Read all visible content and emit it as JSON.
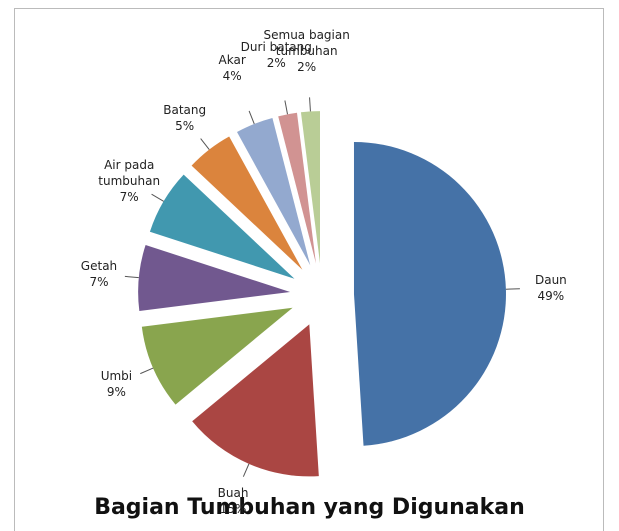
{
  "chart_data": {
    "type": "pie",
    "title": "Bagian Tumbuhan yang Digunakan",
    "categories": [
      "Daun",
      "Buah",
      "Umbi",
      "Getah",
      "Air pada tumbuhan",
      "Batang",
      "Akar",
      "Duri batang",
      "Semua bagian tumbuhan"
    ],
    "values": [
      49,
      15,
      9,
      7,
      7,
      5,
      4,
      2,
      2
    ],
    "value_labels": [
      "49%",
      "15%",
      "9%",
      "7%",
      "7%",
      "5%",
      "4%",
      "2%",
      "2%"
    ],
    "colors": [
      "#4572a7",
      "#aa4643",
      "#89a54e",
      "#71588f",
      "#4198af",
      "#db843d",
      "#93a9cf",
      "#d19392",
      "#b9cd96"
    ]
  }
}
